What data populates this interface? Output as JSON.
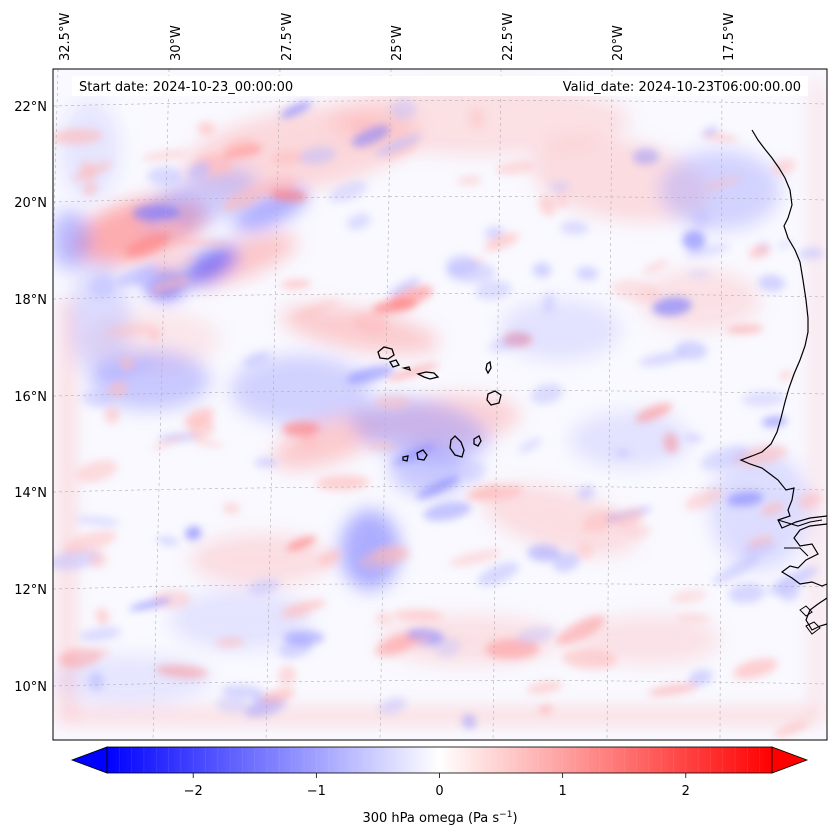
{
  "map": {
    "start_date": "Start date: 2024-10-23_00:00:00",
    "valid_date": "Valid_date: 2024-10-23T06:00:00.00",
    "lon_labels": [
      "32.5°W",
      "30°W",
      "27.5°W",
      "25°W",
      "22.5°W",
      "20°W",
      "17.5°W"
    ],
    "lat_labels": [
      "22°N",
      "20°N",
      "18°N",
      "16°N",
      "14°N",
      "12°N",
      "10°N"
    ],
    "coastline_color": "#000000",
    "gridline_color": "#b0b0b0"
  },
  "colorbar": {
    "label": "300 hPa omega (Pa s",
    "label_sup": "−1",
    "label_end": ")",
    "ticks": [
      "−2",
      "−1",
      "0",
      "1",
      "2"
    ],
    "tick_values": [
      -2,
      -1,
      0,
      1,
      2
    ],
    "vmin": -2.7,
    "vmax": 2.7,
    "colormap": "bwr",
    "color_low": "#0000ff",
    "color_mid": "#ffffff",
    "color_high": "#ff0000"
  }
}
